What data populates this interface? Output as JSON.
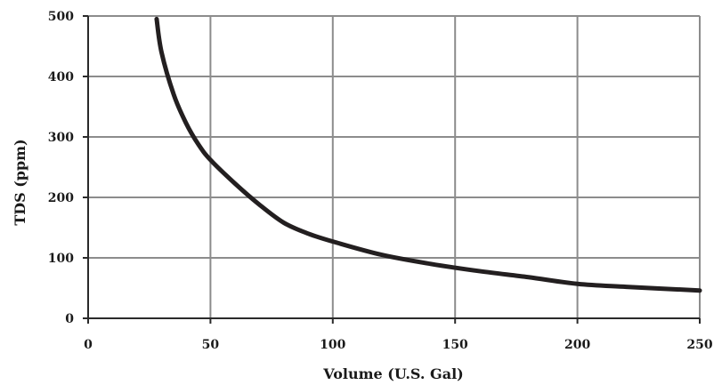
{
  "chart_data": {
    "type": "line",
    "title": "",
    "xlabel": "Volume (U.S. Gal)",
    "ylabel": "TDS (ppm)",
    "xlim": [
      0,
      250
    ],
    "ylim": [
      0,
      500
    ],
    "x_ticks": [
      0,
      50,
      100,
      150,
      200,
      250
    ],
    "y_ticks": [
      0,
      100,
      200,
      300,
      400,
      500
    ],
    "grid": true,
    "legend": "none",
    "series": [
      {
        "color": "#231f20",
        "x": [
          28,
          30,
          35,
          40,
          45,
          50,
          60,
          70,
          80,
          90,
          100,
          120,
          140,
          160,
          180,
          200,
          220,
          250
        ],
        "y": [
          495,
          440,
          370,
          323,
          288,
          262,
          223,
          188,
          158,
          140,
          127,
          105,
          90,
          78,
          68,
          57,
          52,
          46
        ]
      }
    ]
  }
}
